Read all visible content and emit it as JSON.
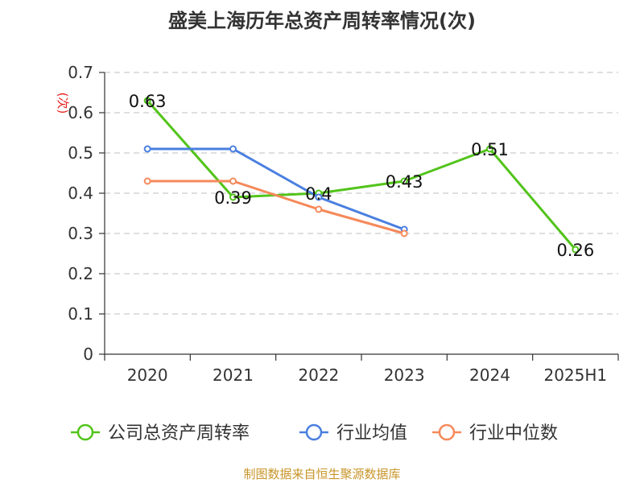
{
  "chart_data": {
    "type": "line",
    "title": "盛美上海历年总资产周转率情况(次)",
    "ylabel": "(次)",
    "xlabel": "",
    "categories": [
      "2020",
      "2021",
      "2022",
      "2023",
      "2024",
      "2025H1"
    ],
    "ylim": [
      0,
      0.7
    ],
    "yticks": [
      0,
      0.1,
      0.2,
      0.3,
      0.4,
      0.5,
      0.6,
      0.7
    ],
    "ytick_labels": [
      "0",
      "0.1",
      "0.2",
      "0.3",
      "0.4",
      "0.5",
      "0.6",
      "0.7"
    ],
    "grid": "horizontal dashed",
    "legend_position": "bottom",
    "series": [
      {
        "name": "公司总资产周转率",
        "color": "#52c41a",
        "values": [
          0.63,
          0.39,
          0.4,
          0.43,
          0.51,
          0.26
        ],
        "data_labels": [
          "0.63",
          "0.39",
          "0.4",
          "0.43",
          "0.51",
          "0.26"
        ]
      },
      {
        "name": "行业均值",
        "color": "#4a7fe0",
        "values": [
          0.51,
          0.51,
          0.39,
          0.31,
          null,
          null
        ]
      },
      {
        "name": "行业中位数",
        "color": "#f5895a",
        "values": [
          0.43,
          0.43,
          0.36,
          0.3,
          null,
          null
        ]
      }
    ],
    "source": "制图数据来自恒生聚源数据库"
  }
}
